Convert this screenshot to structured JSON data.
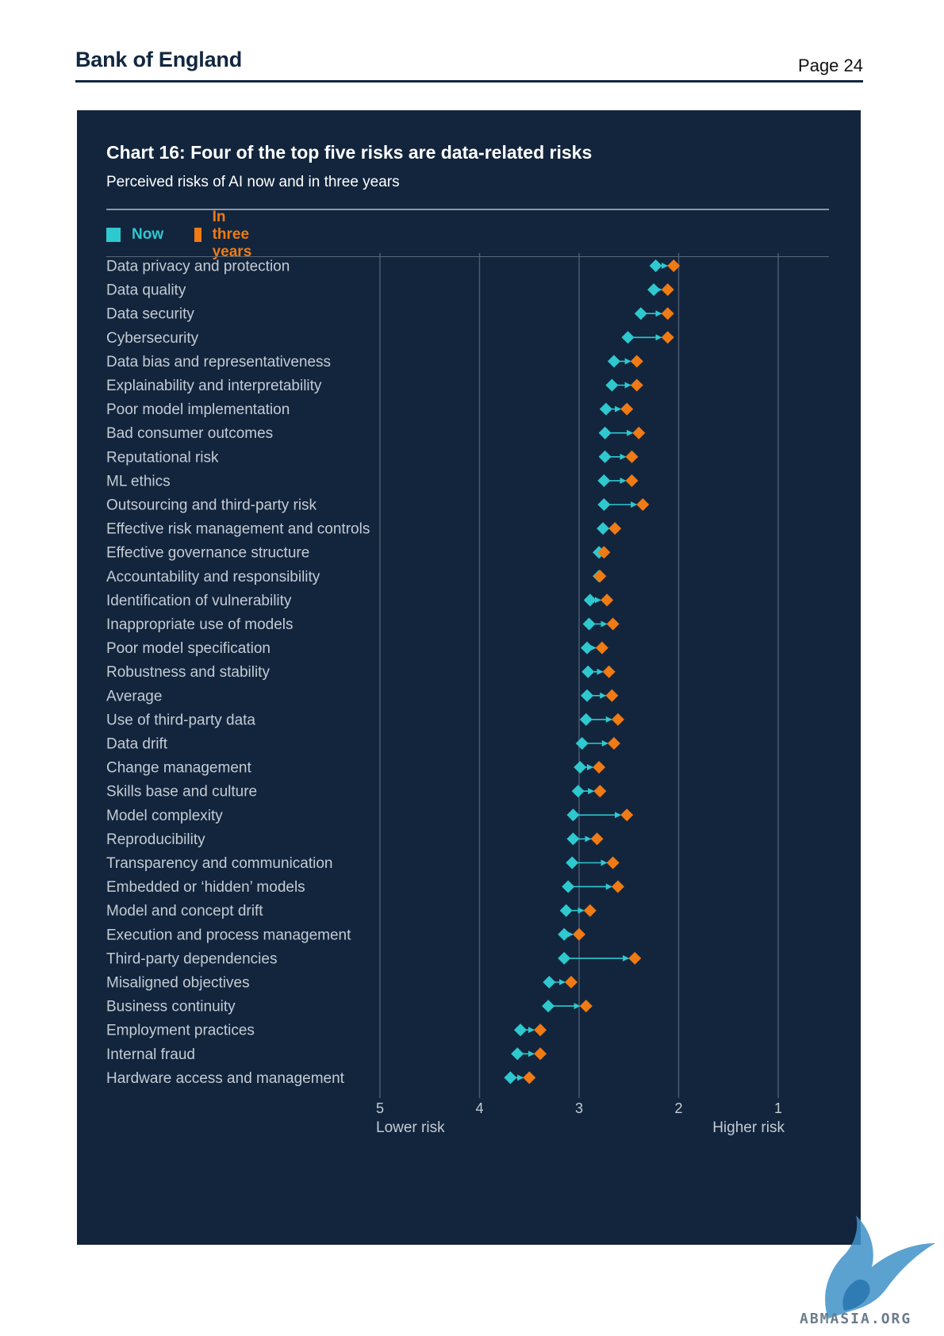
{
  "header": {
    "brand": "Bank of England",
    "page": "Page 24"
  },
  "colors": {
    "panel": "#12253d",
    "now": "#2ec9cf",
    "future": "#f07a14",
    "grid": "#4a5a6e",
    "text": "#c5cbd4"
  },
  "legend": {
    "now": "Now",
    "future": "In three years"
  },
  "watermark": {
    "text": "ABMASIA.ORG",
    "icon": "griffin-icon"
  },
  "chart_data": {
    "type": "dumbbell",
    "title": "Chart 16: Four of the top five risks are data-related risks",
    "subtitle": "Perceived risks of AI now and in three years",
    "x_axis": {
      "ticks": [
        5,
        4,
        3,
        2,
        1
      ],
      "reversed": true,
      "range": [
        5,
        1
      ],
      "left_label": "Lower risk",
      "right_label": "Higher risk"
    },
    "grid": true,
    "legend_placement": "top-left",
    "series": [
      {
        "name": "Now"
      },
      {
        "name": "In three years"
      }
    ],
    "rows": [
      {
        "label": "Data privacy and protection",
        "now": 2.23,
        "future": 2.05
      },
      {
        "label": "Data quality",
        "now": 2.25,
        "future": 2.11
      },
      {
        "label": "Data security",
        "now": 2.38,
        "future": 2.11
      },
      {
        "label": "Cybersecurity",
        "now": 2.51,
        "future": 2.11
      },
      {
        "label": "Data bias and representativeness",
        "now": 2.65,
        "future": 2.42
      },
      {
        "label": "Explainability and interpretability",
        "now": 2.67,
        "future": 2.42
      },
      {
        "label": "Poor model implementation",
        "now": 2.73,
        "future": 2.52
      },
      {
        "label": "Bad consumer outcomes",
        "now": 2.74,
        "future": 2.4
      },
      {
        "label": "Reputational risk",
        "now": 2.74,
        "future": 2.47
      },
      {
        "label": "ML ethics",
        "now": 2.75,
        "future": 2.47
      },
      {
        "label": "Outsourcing and third-party risk",
        "now": 2.75,
        "future": 2.36
      },
      {
        "label": "Effective risk management and controls",
        "now": 2.76,
        "future": 2.64
      },
      {
        "label": "Effective governance structure",
        "now": 2.8,
        "future": 2.75
      },
      {
        "label": "Accountability and responsibility",
        "now": 2.8,
        "future": 2.79
      },
      {
        "label": "Identification of vulnerability",
        "now": 2.89,
        "future": 2.72
      },
      {
        "label": "Inappropriate use of models",
        "now": 2.9,
        "future": 2.66
      },
      {
        "label": "Poor model specification",
        "now": 2.92,
        "future": 2.77
      },
      {
        "label": "Robustness and stability",
        "now": 2.91,
        "future": 2.7
      },
      {
        "label": "Average",
        "now": 2.92,
        "future": 2.67
      },
      {
        "label": "Use of third-party data",
        "now": 2.93,
        "future": 2.61
      },
      {
        "label": "Data drift",
        "now": 2.97,
        "future": 2.65
      },
      {
        "label": "Change management",
        "now": 2.99,
        "future": 2.8
      },
      {
        "label": "Skills base and culture",
        "now": 3.01,
        "future": 2.79
      },
      {
        "label": "Model complexity",
        "now": 3.06,
        "future": 2.52
      },
      {
        "label": "Reproducibility",
        "now": 3.06,
        "future": 2.82
      },
      {
        "label": "Transparency and communication",
        "now": 3.07,
        "future": 2.66
      },
      {
        "label": "Embedded or ‘hidden’ models",
        "now": 3.11,
        "future": 2.61
      },
      {
        "label": "Model and concept drift",
        "now": 3.13,
        "future": 2.89
      },
      {
        "label": "Execution and process management",
        "now": 3.15,
        "future": 3.0
      },
      {
        "label": "Third-party dependencies",
        "now": 3.15,
        "future": 2.44
      },
      {
        "label": "Misaligned objectives",
        "now": 3.3,
        "future": 3.08
      },
      {
        "label": "Business continuity",
        "now": 3.31,
        "future": 2.93
      },
      {
        "label": "Employment practices",
        "now": 3.59,
        "future": 3.39
      },
      {
        "label": "Internal fraud",
        "now": 3.62,
        "future": 3.39
      },
      {
        "label": "Hardware access and management",
        "now": 3.69,
        "future": 3.5
      }
    ]
  }
}
